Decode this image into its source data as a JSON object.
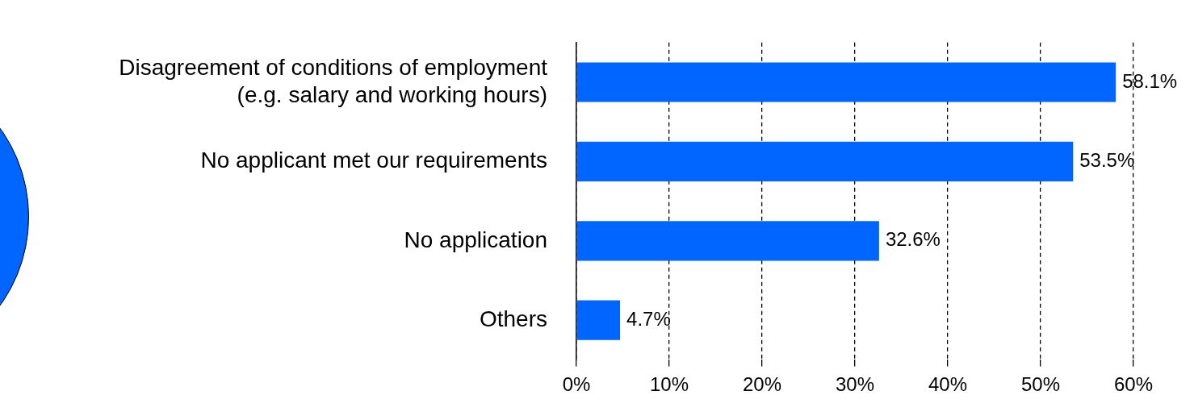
{
  "chart_data": {
    "type": "bar",
    "orientation": "horizontal",
    "categories": [
      "Disagreement of conditions of employment\n(e.g. salary and working hours)",
      "No applicant met our requirements",
      "No application",
      "Others"
    ],
    "values": [
      58.1,
      53.5,
      32.6,
      4.7
    ],
    "value_labels": [
      "58.1%",
      "53.5%",
      "32.6%",
      "4.7%"
    ],
    "color": "#0066ff",
    "xlim": [
      0,
      60
    ],
    "xticks": [
      {
        "value": 0,
        "label": "0%"
      },
      {
        "value": 10,
        "label": "10%"
      },
      {
        "value": 20,
        "label": "20%"
      },
      {
        "value": 30,
        "label": "30%"
      },
      {
        "value": 40,
        "label": "40%"
      },
      {
        "value": 50,
        "label": "50%"
      },
      {
        "value": 60,
        "label": "60%"
      }
    ],
    "grid": "x",
    "legend": false
  }
}
